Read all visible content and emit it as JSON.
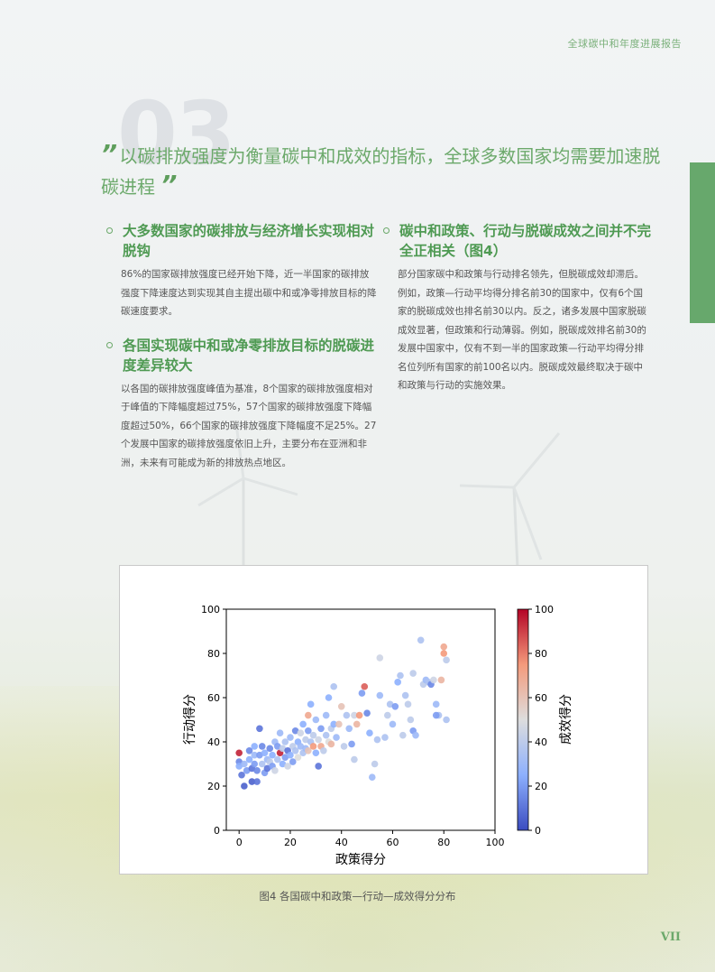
{
  "header": {
    "report_title": "全球碳中和年度进展报告"
  },
  "section_number": "03",
  "headline": {
    "open_quote": "”",
    "text": "以碳排放强度为衡量碳中和成效的指标，全球多数国家均需要加速脱碳进程",
    "close_quote": "”"
  },
  "left_column": {
    "sections": [
      {
        "heading": "大多数国家的碳排放与经济增长实现相对脱钩",
        "body": "86%的国家碳排放强度已经开始下降，近一半国家的碳排放强度下降速度达到实现其自主提出碳中和或净零排放目标的降碳速度要求。"
      },
      {
        "heading": "各国实现碳中和或净零排放目标的脱碳进度差异较大",
        "body": "以各国的碳排放强度峰值为基准，8个国家的碳排放强度相对于峰值的下降幅度超过75%，57个国家的碳排放强度下降幅度超过50%，66个国家的碳排放强度下降幅度不足25%。27个发展中国家的碳排放强度依旧上升，主要分布在亚洲和非洲，未来有可能成为新的排放热点地区。"
      }
    ]
  },
  "right_column": {
    "sections": [
      {
        "heading": "碳中和政策、行动与脱碳成效之间并不完全正相关（图4）",
        "body": "部分国家碳中和政策与行动排名领先，但脱碳成效却滞后。例如，政策—行动平均得分排名前30的国家中，仅有6个国家的脱碳成效也排名前30以内。反之，诸多发展中国家脱碳成效显著，但政策和行动薄弱。例如，脱碳成效排名前30的发展中国家中，仅有不到一半的国家政策—行动平均得分排名位列所有国家的前100名以内。脱碳成效最终取决于碳中和政策与行动的实施效果。"
      }
    ]
  },
  "figure_caption": "图4 各国碳中和政策—行动—成效得分分布",
  "page_number": "VII",
  "colors": {
    "accent_green": "#67a86c",
    "colormap_low": "#3b4cc0",
    "colormap_mid": "#dddddd",
    "colormap_high": "#b40426"
  },
  "chart_data": {
    "type": "scatter",
    "title": "",
    "xlabel": "政策得分",
    "ylabel": "行动得分",
    "colorbar_label": "成效得分",
    "xlim": [
      -5,
      100
    ],
    "ylim": [
      0,
      100
    ],
    "xticks": [
      0,
      20,
      40,
      60,
      80,
      100
    ],
    "yticks": [
      0,
      20,
      40,
      60,
      80,
      100
    ],
    "cticks": [
      0,
      20,
      40,
      60,
      80,
      100
    ],
    "clim": [
      0,
      100
    ],
    "grid": false,
    "points": [
      [
        0,
        35,
        95
      ],
      [
        0,
        31,
        15
      ],
      [
        0,
        29,
        25
      ],
      [
        1,
        25,
        10
      ],
      [
        2,
        20,
        5
      ],
      [
        2,
        30,
        30
      ],
      [
        3,
        27,
        20
      ],
      [
        4,
        36,
        15
      ],
      [
        4,
        32,
        25
      ],
      [
        5,
        28,
        10
      ],
      [
        5,
        22,
        5
      ],
      [
        6,
        34,
        30
      ],
      [
        6,
        30,
        20
      ],
      [
        6,
        38,
        25
      ],
      [
        7,
        22,
        10
      ],
      [
        7,
        27,
        15
      ],
      [
        8,
        46,
        10
      ],
      [
        8,
        34,
        20
      ],
      [
        9,
        30,
        35
      ],
      [
        9,
        38,
        15
      ],
      [
        10,
        26,
        20
      ],
      [
        10,
        35,
        25
      ],
      [
        11,
        28,
        10
      ],
      [
        11,
        32,
        30
      ],
      [
        12,
        37,
        15
      ],
      [
        12,
        31,
        40
      ],
      [
        13,
        29,
        20
      ],
      [
        13,
        34,
        25
      ],
      [
        14,
        40,
        30
      ],
      [
        14,
        27,
        45
      ],
      [
        15,
        38,
        20
      ],
      [
        15,
        32,
        35
      ],
      [
        16,
        35,
        95
      ],
      [
        16,
        44,
        30
      ],
      [
        17,
        30,
        25
      ],
      [
        17,
        37,
        40
      ],
      [
        18,
        33,
        20
      ],
      [
        18,
        40,
        35
      ],
      [
        19,
        36,
        10
      ],
      [
        19,
        29,
        45
      ],
      [
        20,
        42,
        30
      ],
      [
        20,
        34,
        25
      ],
      [
        21,
        38,
        40
      ],
      [
        21,
        31,
        20
      ],
      [
        22,
        45,
        15
      ],
      [
        22,
        36,
        35
      ],
      [
        23,
        40,
        25
      ],
      [
        23,
        33,
        50
      ],
      [
        24,
        38,
        30
      ],
      [
        24,
        44,
        45
      ],
      [
        25,
        35,
        35
      ],
      [
        25,
        48,
        25
      ],
      [
        26,
        41,
        40
      ],
      [
        26,
        37,
        30
      ],
      [
        27,
        52,
        70
      ],
      [
        27,
        45,
        20
      ],
      [
        27,
        36,
        60
      ],
      [
        28,
        40,
        35
      ],
      [
        28,
        57,
        25
      ],
      [
        29,
        43,
        40
      ],
      [
        29,
        38,
        75
      ],
      [
        30,
        50,
        30
      ],
      [
        30,
        35,
        25
      ],
      [
        31,
        29,
        10
      ],
      [
        31,
        41,
        45
      ],
      [
        32,
        38,
        70
      ],
      [
        32,
        46,
        20
      ],
      [
        33,
        36,
        40
      ],
      [
        34,
        52,
        30
      ],
      [
        34,
        43,
        35
      ],
      [
        35,
        60,
        25
      ],
      [
        35,
        40,
        50
      ],
      [
        36,
        46,
        40
      ],
      [
        36,
        39,
        65
      ],
      [
        37,
        65,
        35
      ],
      [
        37,
        48,
        25
      ],
      [
        38,
        42,
        30
      ],
      [
        39,
        48,
        60
      ],
      [
        40,
        56,
        60
      ],
      [
        41,
        38,
        40
      ],
      [
        42,
        52,
        35
      ],
      [
        43,
        46,
        30
      ],
      [
        44,
        39,
        20
      ],
      [
        45,
        52,
        45
      ],
      [
        45,
        32,
        40
      ],
      [
        46,
        48,
        65
      ],
      [
        47,
        52,
        75
      ],
      [
        48,
        62,
        20
      ],
      [
        49,
        65,
        85
      ],
      [
        50,
        53,
        15
      ],
      [
        51,
        44,
        25
      ],
      [
        52,
        24,
        30
      ],
      [
        53,
        30,
        40
      ],
      [
        54,
        41,
        35
      ],
      [
        55,
        61,
        30
      ],
      [
        55,
        78,
        45
      ],
      [
        57,
        42,
        35
      ],
      [
        58,
        52,
        40
      ],
      [
        59,
        57,
        35
      ],
      [
        60,
        48,
        30
      ],
      [
        61,
        56,
        20
      ],
      [
        62,
        67,
        25
      ],
      [
        63,
        70,
        35
      ],
      [
        64,
        43,
        40
      ],
      [
        65,
        61,
        35
      ],
      [
        66,
        57,
        40
      ],
      [
        67,
        50,
        40
      ],
      [
        68,
        45,
        20
      ],
      [
        69,
        43,
        30
      ],
      [
        71,
        86,
        35
      ],
      [
        72,
        66,
        40
      ],
      [
        73,
        68,
        30
      ],
      [
        74,
        67,
        35
      ],
      [
        75,
        66,
        15
      ],
      [
        76,
        68,
        45
      ],
      [
        77,
        57,
        30
      ],
      [
        78,
        52,
        35
      ],
      [
        79,
        68,
        65
      ],
      [
        80,
        83,
        70
      ],
      [
        80,
        80,
        75
      ],
      [
        81,
        77,
        40
      ],
      [
        81,
        50,
        35
      ],
      [
        68,
        71,
        40
      ],
      [
        77,
        52,
        20
      ]
    ]
  }
}
